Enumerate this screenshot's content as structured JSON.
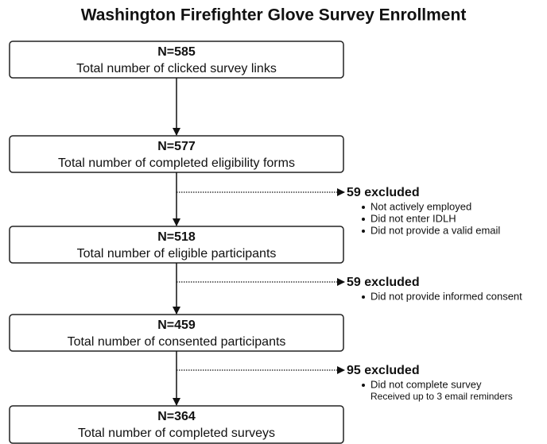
{
  "title": "Washington Firefighter Glove Survey Enrollment",
  "nodes": [
    {
      "count": "N=585",
      "label": "Total number of clicked survey links"
    },
    {
      "count": "N=577",
      "label": "Total number of completed eligibility forms"
    },
    {
      "count": "N=518",
      "label": "Total number of eligible participants"
    },
    {
      "count": "N=459",
      "label": "Total number of consented participants"
    },
    {
      "count": "N=364",
      "label": "Total number of completed surveys"
    }
  ],
  "exclusions": [
    {
      "label": "59 excluded",
      "items": [
        "Not actively employed",
        "Did not enter IDLH",
        "Did not provide a valid email"
      ]
    },
    {
      "label": "59 excluded",
      "items": [
        "Did not provide informed consent"
      ]
    },
    {
      "label": "95 excluded",
      "items": [
        "Did not complete survey"
      ],
      "note": "Received up to 3 email reminders"
    }
  ]
}
